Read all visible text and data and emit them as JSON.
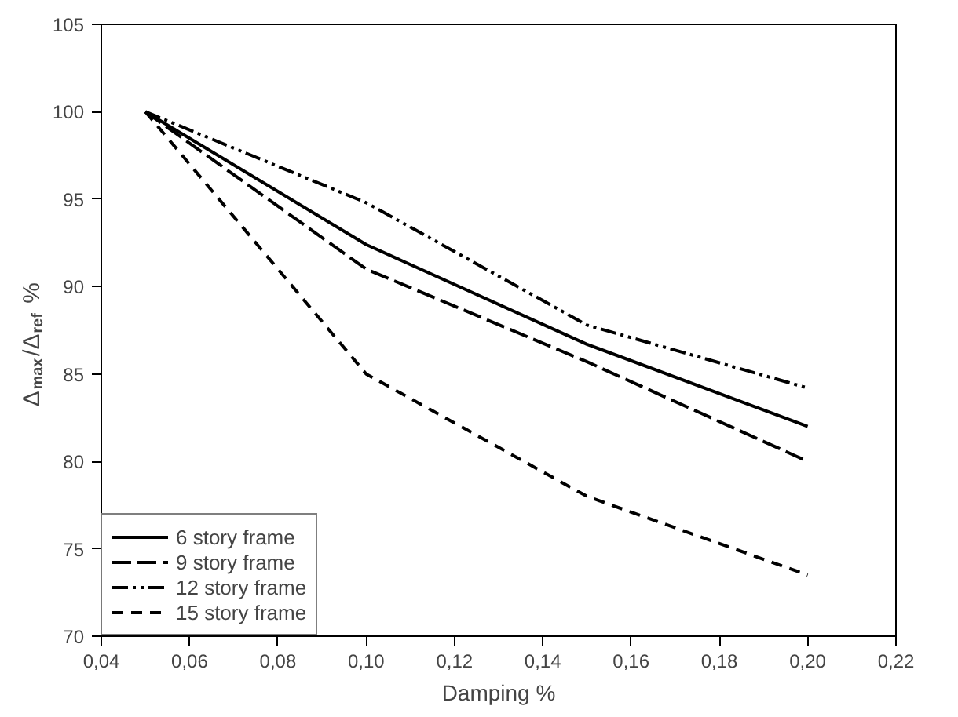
{
  "chart_data": {
    "type": "line",
    "xlabel": "Damping %",
    "ylabel": "Δ$_{max}$/Δ$_{ref}$ %",
    "x": [
      0.05,
      0.1,
      0.15,
      0.2
    ],
    "series": [
      {
        "name": "6 story frame",
        "color": "#000000",
        "line_style": "solid",
        "values": [
          100,
          92.4,
          86.7,
          82.0
        ]
      },
      {
        "name": "9 story frame",
        "color": "#000000",
        "line_style": "dashed",
        "values": [
          100,
          91.0,
          85.7,
          80.0
        ]
      },
      {
        "name": "12 story frame",
        "color": "#000000",
        "line_style": "dashdotdot",
        "values": [
          100,
          94.8,
          87.8,
          84.2
        ]
      },
      {
        "name": "15 story frame",
        "color": "#000000",
        "line_style": "shortdash",
        "values": [
          100,
          85.0,
          78.0,
          73.5
        ]
      }
    ],
    "xlim": [
      0.04,
      0.22
    ],
    "ylim": [
      70,
      105
    ],
    "xticks": [
      {
        "value": 0.04,
        "label": "0,04"
      },
      {
        "value": 0.06,
        "label": "0,06"
      },
      {
        "value": 0.08,
        "label": "0,08"
      },
      {
        "value": 0.1,
        "label": "0,10"
      },
      {
        "value": 0.12,
        "label": "0,12"
      },
      {
        "value": 0.14,
        "label": "0,14"
      },
      {
        "value": 0.16,
        "label": "0,16"
      },
      {
        "value": 0.18,
        "label": "0,18"
      },
      {
        "value": 0.2,
        "label": "0,20"
      },
      {
        "value": 0.22,
        "label": "0,22"
      }
    ],
    "yticks": [
      70,
      75,
      80,
      85,
      90,
      95,
      100,
      105
    ],
    "grid": false,
    "legend": "bottom left",
    "marker": "none"
  }
}
